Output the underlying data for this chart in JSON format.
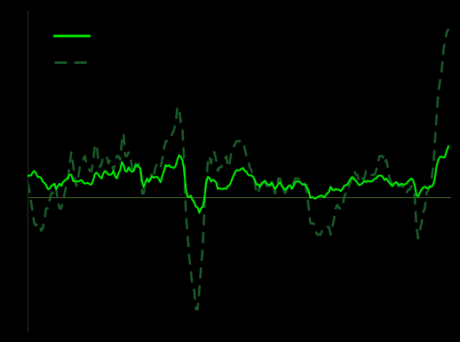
{
  "background_color": "#000000",
  "spine_color": "#1a3320",
  "zero_line_color": "#4a6a30",
  "cpi_color": "#00ee00",
  "ppi_color": "#1a5c2a",
  "figsize": [
    5.18,
    3.85
  ],
  "dpi": 100,
  "xlim_start": 2001.0,
  "xlim_end": 2021.95,
  "ylim": [
    -18,
    25
  ],
  "cpi_monthly": [
    2.8,
    2.9,
    2.9,
    3.3,
    3.5,
    3.2,
    2.7,
    2.7,
    2.6,
    2.1,
    1.9,
    1.6,
    1.1,
    1.1,
    1.5,
    1.6,
    1.8,
    1.1,
    1.5,
    1.8,
    1.5,
    2.0,
    2.2,
    2.4,
    2.6,
    3.0,
    3.0,
    2.2,
    2.1,
    2.1,
    2.1,
    2.2,
    2.3,
    2.0,
    1.8,
    1.9,
    1.9,
    1.7,
    1.7,
    2.3,
    3.1,
    3.3,
    3.0,
    2.7,
    2.5,
    3.2,
    3.5,
    3.3,
    3.0,
    3.0,
    3.1,
    3.5,
    2.8,
    2.5,
    3.2,
    3.6,
    4.7,
    4.3,
    3.5,
    3.4,
    4.0,
    3.6,
    3.4,
    3.5,
    4.2,
    4.3,
    4.1,
    3.8,
    2.1,
    1.3,
    2.0,
    2.5,
    2.1,
    2.4,
    2.8,
    2.6,
    2.7,
    2.7,
    2.4,
    2.0,
    2.8,
    3.5,
    4.3,
    4.1,
    4.3,
    4.0,
    4.0,
    3.9,
    4.2,
    5.0,
    5.6,
    5.4,
    4.9,
    3.7,
    1.1,
    0.1,
    0.0,
    0.2,
    -0.4,
    -0.7,
    -1.3,
    -1.4,
    -2.1,
    -1.5,
    -1.3,
    -0.2,
    1.8,
    2.7,
    2.6,
    2.1,
    2.3,
    2.2,
    2.0,
    1.1,
    1.2,
    1.1,
    1.1,
    1.2,
    1.1,
    1.5,
    1.6,
    2.1,
    2.7,
    3.2,
    3.6,
    3.6,
    3.6,
    3.8,
    3.9,
    3.5,
    3.4,
    3.0,
    2.9,
    2.9,
    2.7,
    2.3,
    1.7,
    1.7,
    1.4,
    1.7,
    2.0,
    2.2,
    1.8,
    1.7,
    1.6,
    2.0,
    1.5,
    1.1,
    1.4,
    1.8,
    2.0,
    1.5,
    1.2,
    1.0,
    1.2,
    1.5,
    1.6,
    1.1,
    1.5,
    2.0,
    2.1,
    2.1,
    2.0,
    1.7,
    1.7,
    1.7,
    1.3,
    0.8,
    -0.1,
    0.0,
    -0.1,
    -0.2,
    0.0,
    0.1,
    0.2,
    0.2,
    0.0,
    0.2,
    0.5,
    0.7,
    1.4,
    1.0,
    0.9,
    1.1,
    1.0,
    1.0,
    0.8,
    1.1,
    1.5,
    1.6,
    1.7,
    2.1,
    2.5,
    2.7,
    2.4,
    2.2,
    1.9,
    1.6,
    1.7,
    1.9,
    2.2,
    2.0,
    2.2,
    2.1,
    2.1,
    2.2,
    2.4,
    2.5,
    2.8,
    2.9,
    2.9,
    2.7,
    2.3,
    2.5,
    2.2,
    1.9,
    1.6,
    1.5,
    1.9,
    2.0,
    1.8,
    1.6,
    1.8,
    1.7,
    1.7,
    1.8,
    2.1,
    2.3,
    2.5,
    2.3,
    1.5,
    0.3,
    0.1,
    0.6,
    1.0,
    1.3,
    1.4,
    1.2,
    1.2,
    1.4,
    1.4,
    1.7,
    2.6,
    4.2,
    5.0,
    5.4,
    5.4,
    5.3,
    5.4,
    6.2,
    6.8
  ],
  "ppi_monthly": [
    2.0,
    1.0,
    -0.5,
    -2.0,
    -3.5,
    -3.8,
    -3.5,
    -3.5,
    -4.5,
    -4.2,
    -3.0,
    -1.5,
    -1.5,
    -0.5,
    0.5,
    0.5,
    1.5,
    1.0,
    -0.5,
    -1.5,
    -1.5,
    -0.5,
    0.5,
    1.5,
    2.5,
    4.5,
    6.0,
    4.5,
    2.5,
    1.5,
    2.5,
    4.0,
    4.5,
    5.0,
    5.5,
    4.5,
    4.0,
    3.5,
    3.5,
    5.0,
    7.0,
    7.0,
    5.0,
    4.0,
    4.5,
    5.5,
    5.5,
    5.5,
    4.5,
    5.0,
    4.5,
    3.5,
    4.5,
    5.5,
    5.5,
    5.0,
    7.5,
    8.5,
    5.5,
    5.5,
    6.0,
    5.5,
    4.0,
    3.5,
    4.5,
    4.0,
    4.5,
    4.0,
    0.5,
    0.5,
    1.5,
    2.0,
    2.0,
    2.5,
    3.5,
    3.0,
    4.0,
    4.5,
    4.5,
    4.0,
    5.0,
    6.5,
    7.5,
    7.5,
    7.5,
    8.0,
    8.5,
    9.0,
    10.0,
    12.0,
    12.0,
    10.0,
    9.0,
    5.0,
    -2.0,
    -5.0,
    -8.0,
    -10.0,
    -12.0,
    -12.5,
    -15.0,
    -15.0,
    -12.5,
    -9.5,
    -7.0,
    -1.5,
    2.0,
    4.5,
    5.5,
    4.5,
    6.0,
    6.0,
    5.0,
    3.5,
    4.0,
    4.0,
    4.5,
    5.0,
    5.5,
    4.0,
    4.5,
    6.0,
    6.5,
    7.0,
    7.5,
    7.5,
    7.5,
    7.5,
    7.5,
    6.5,
    5.5,
    5.0,
    4.0,
    3.5,
    3.0,
    2.0,
    0.5,
    0.5,
    1.5,
    2.0,
    2.5,
    2.5,
    1.5,
    1.5,
    1.5,
    2.0,
    1.5,
    0.5,
    1.5,
    2.5,
    2.5,
    1.5,
    1.0,
    0.5,
    1.0,
    1.5,
    1.5,
    1.5,
    2.0,
    2.5,
    2.5,
    2.5,
    2.0,
    2.0,
    2.0,
    1.5,
    0.5,
    -1.5,
    -3.5,
    -3.5,
    -3.5,
    -4.5,
    -5.0,
    -5.0,
    -5.0,
    -4.5,
    -4.5,
    -4.5,
    -4.0,
    -4.0,
    -5.0,
    -4.0,
    -3.0,
    -1.5,
    -1.0,
    -1.5,
    -1.5,
    -1.5,
    0.0,
    0.5,
    0.5,
    1.5,
    2.0,
    3.0,
    3.5,
    3.0,
    3.0,
    2.0,
    2.0,
    2.5,
    2.5,
    3.5,
    3.5,
    3.5,
    3.0,
    3.0,
    3.0,
    3.5,
    4.5,
    5.5,
    5.5,
    5.5,
    4.5,
    5.0,
    4.0,
    2.5,
    2.0,
    1.5,
    2.0,
    2.0,
    1.5,
    1.5,
    1.5,
    1.5,
    1.0,
    0.5,
    1.0,
    1.0,
    1.5,
    1.0,
    0.0,
    -4.0,
    -5.5,
    -4.5,
    -3.5,
    -2.0,
    -1.5,
    0.5,
    1.0,
    1.5,
    2.5,
    4.0,
    7.5,
    11.0,
    14.0,
    15.5,
    17.0,
    19.5,
    21.0,
    22.0,
    22.5
  ]
}
